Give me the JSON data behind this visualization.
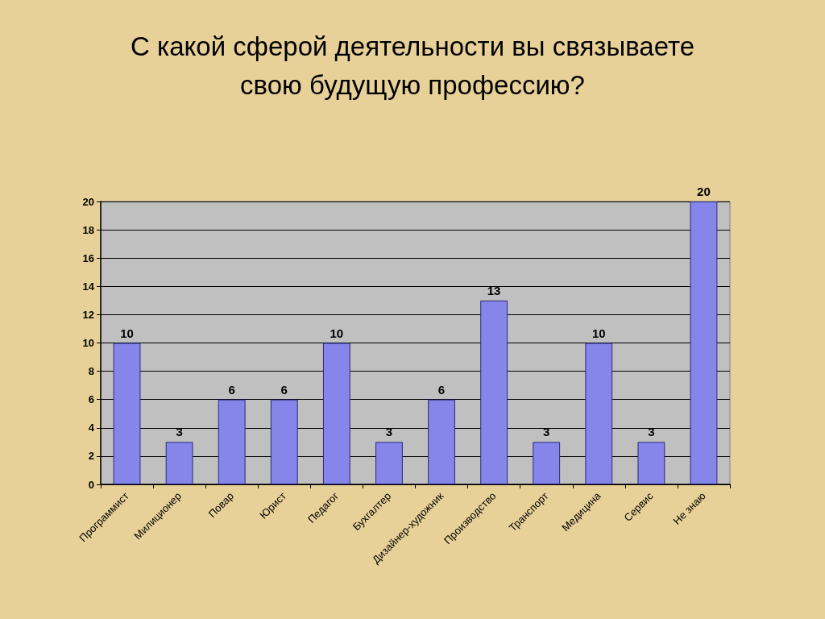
{
  "chart_data": {
    "type": "bar",
    "title": "С какой сферой деятельности вы связываете\nсвою будущую профессию?",
    "categories": [
      "Программист",
      "Милиционер",
      "Повар",
      "Юрист",
      "Педагог",
      "Бухгалтер",
      "Дизайнер-художник",
      "Производство",
      "Транспорт",
      "Медицина",
      "Сервис",
      "Не знаю"
    ],
    "values": [
      10,
      3,
      6,
      6,
      10,
      3,
      6,
      13,
      3,
      10,
      3,
      20
    ],
    "color": "#8585ea",
    "ylim": [
      0,
      20
    ],
    "yticks": [
      0,
      2,
      4,
      6,
      8,
      10,
      12,
      14,
      16,
      18,
      20
    ],
    "grid": "y",
    "data_labels": true
  }
}
